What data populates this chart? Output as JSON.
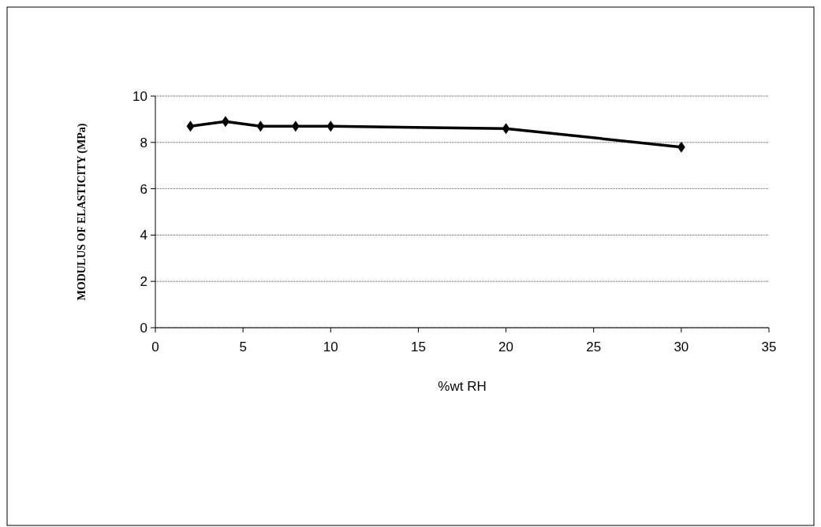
{
  "chart_data": {
    "type": "line",
    "xlabel": "%wt RH",
    "ylabel": "MODULUS OF ELASTICITY (MPa)",
    "x": [
      2,
      4,
      6,
      8,
      10,
      20,
      30
    ],
    "series": [
      {
        "color": "#000000",
        "values": [
          8.7,
          8.9,
          8.7,
          8.7,
          8.7,
          8.6,
          7.8
        ]
      }
    ],
    "xlim": [
      0,
      35
    ],
    "xticks": [
      0,
      5,
      10,
      15,
      20,
      25,
      30,
      35
    ],
    "ylim": [
      0,
      10
    ],
    "yticks": [
      0,
      2,
      4,
      6,
      8,
      10
    ],
    "grid": "y",
    "marker": "diamond",
    "line_style": "solid"
  }
}
